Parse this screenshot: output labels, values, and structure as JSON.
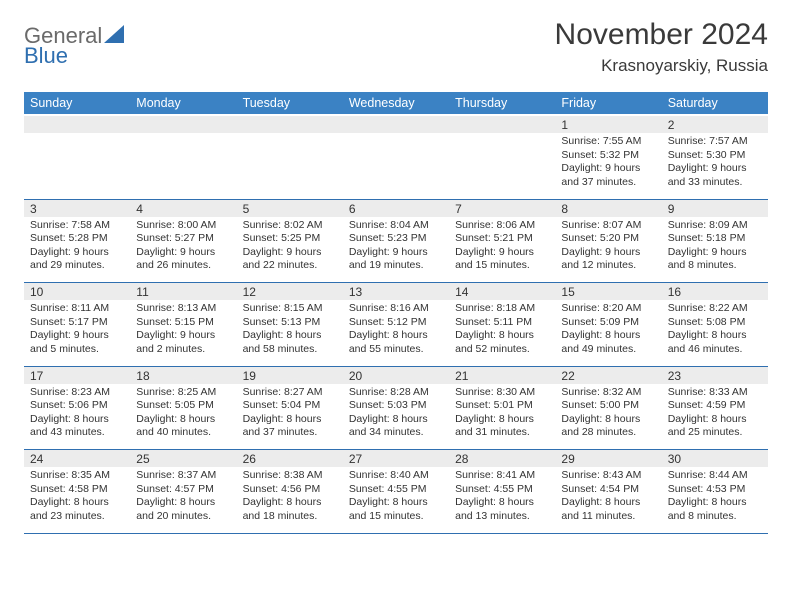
{
  "brand": {
    "name_part1": "General",
    "name_part2": "Blue",
    "accent_color": "#2f6fb0",
    "gray_color": "#6a6a6a"
  },
  "title": {
    "month_year": "November 2024",
    "location": "Krasnoyarskiy, Russia"
  },
  "theme": {
    "header_bg": "#3b82c4",
    "header_text": "#ffffff",
    "daynum_bg": "#ececec",
    "border_color": "#2f6fb0",
    "font_family": "Arial",
    "month_title_fontsize": 30,
    "location_fontsize": 17,
    "weekday_fontsize": 12.5,
    "daynum_fontsize": 12,
    "cell_fontsize": 10.5
  },
  "weekdays": [
    "Sunday",
    "Monday",
    "Tuesday",
    "Wednesday",
    "Thursday",
    "Friday",
    "Saturday"
  ],
  "weeks": [
    [
      {
        "day": "",
        "sunrise": "",
        "sunset": "",
        "daylight": ""
      },
      {
        "day": "",
        "sunrise": "",
        "sunset": "",
        "daylight": ""
      },
      {
        "day": "",
        "sunrise": "",
        "sunset": "",
        "daylight": ""
      },
      {
        "day": "",
        "sunrise": "",
        "sunset": "",
        "daylight": ""
      },
      {
        "day": "",
        "sunrise": "",
        "sunset": "",
        "daylight": ""
      },
      {
        "day": "1",
        "sunrise": "Sunrise: 7:55 AM",
        "sunset": "Sunset: 5:32 PM",
        "daylight": "Daylight: 9 hours and 37 minutes."
      },
      {
        "day": "2",
        "sunrise": "Sunrise: 7:57 AM",
        "sunset": "Sunset: 5:30 PM",
        "daylight": "Daylight: 9 hours and 33 minutes."
      }
    ],
    [
      {
        "day": "3",
        "sunrise": "Sunrise: 7:58 AM",
        "sunset": "Sunset: 5:28 PM",
        "daylight": "Daylight: 9 hours and 29 minutes."
      },
      {
        "day": "4",
        "sunrise": "Sunrise: 8:00 AM",
        "sunset": "Sunset: 5:27 PM",
        "daylight": "Daylight: 9 hours and 26 minutes."
      },
      {
        "day": "5",
        "sunrise": "Sunrise: 8:02 AM",
        "sunset": "Sunset: 5:25 PM",
        "daylight": "Daylight: 9 hours and 22 minutes."
      },
      {
        "day": "6",
        "sunrise": "Sunrise: 8:04 AM",
        "sunset": "Sunset: 5:23 PM",
        "daylight": "Daylight: 9 hours and 19 minutes."
      },
      {
        "day": "7",
        "sunrise": "Sunrise: 8:06 AM",
        "sunset": "Sunset: 5:21 PM",
        "daylight": "Daylight: 9 hours and 15 minutes."
      },
      {
        "day": "8",
        "sunrise": "Sunrise: 8:07 AM",
        "sunset": "Sunset: 5:20 PM",
        "daylight": "Daylight: 9 hours and 12 minutes."
      },
      {
        "day": "9",
        "sunrise": "Sunrise: 8:09 AM",
        "sunset": "Sunset: 5:18 PM",
        "daylight": "Daylight: 9 hours and 8 minutes."
      }
    ],
    [
      {
        "day": "10",
        "sunrise": "Sunrise: 8:11 AM",
        "sunset": "Sunset: 5:17 PM",
        "daylight": "Daylight: 9 hours and 5 minutes."
      },
      {
        "day": "11",
        "sunrise": "Sunrise: 8:13 AM",
        "sunset": "Sunset: 5:15 PM",
        "daylight": "Daylight: 9 hours and 2 minutes."
      },
      {
        "day": "12",
        "sunrise": "Sunrise: 8:15 AM",
        "sunset": "Sunset: 5:13 PM",
        "daylight": "Daylight: 8 hours and 58 minutes."
      },
      {
        "day": "13",
        "sunrise": "Sunrise: 8:16 AM",
        "sunset": "Sunset: 5:12 PM",
        "daylight": "Daylight: 8 hours and 55 minutes."
      },
      {
        "day": "14",
        "sunrise": "Sunrise: 8:18 AM",
        "sunset": "Sunset: 5:11 PM",
        "daylight": "Daylight: 8 hours and 52 minutes."
      },
      {
        "day": "15",
        "sunrise": "Sunrise: 8:20 AM",
        "sunset": "Sunset: 5:09 PM",
        "daylight": "Daylight: 8 hours and 49 minutes."
      },
      {
        "day": "16",
        "sunrise": "Sunrise: 8:22 AM",
        "sunset": "Sunset: 5:08 PM",
        "daylight": "Daylight: 8 hours and 46 minutes."
      }
    ],
    [
      {
        "day": "17",
        "sunrise": "Sunrise: 8:23 AM",
        "sunset": "Sunset: 5:06 PM",
        "daylight": "Daylight: 8 hours and 43 minutes."
      },
      {
        "day": "18",
        "sunrise": "Sunrise: 8:25 AM",
        "sunset": "Sunset: 5:05 PM",
        "daylight": "Daylight: 8 hours and 40 minutes."
      },
      {
        "day": "19",
        "sunrise": "Sunrise: 8:27 AM",
        "sunset": "Sunset: 5:04 PM",
        "daylight": "Daylight: 8 hours and 37 minutes."
      },
      {
        "day": "20",
        "sunrise": "Sunrise: 8:28 AM",
        "sunset": "Sunset: 5:03 PM",
        "daylight": "Daylight: 8 hours and 34 minutes."
      },
      {
        "day": "21",
        "sunrise": "Sunrise: 8:30 AM",
        "sunset": "Sunset: 5:01 PM",
        "daylight": "Daylight: 8 hours and 31 minutes."
      },
      {
        "day": "22",
        "sunrise": "Sunrise: 8:32 AM",
        "sunset": "Sunset: 5:00 PM",
        "daylight": "Daylight: 8 hours and 28 minutes."
      },
      {
        "day": "23",
        "sunrise": "Sunrise: 8:33 AM",
        "sunset": "Sunset: 4:59 PM",
        "daylight": "Daylight: 8 hours and 25 minutes."
      }
    ],
    [
      {
        "day": "24",
        "sunrise": "Sunrise: 8:35 AM",
        "sunset": "Sunset: 4:58 PM",
        "daylight": "Daylight: 8 hours and 23 minutes."
      },
      {
        "day": "25",
        "sunrise": "Sunrise: 8:37 AM",
        "sunset": "Sunset: 4:57 PM",
        "daylight": "Daylight: 8 hours and 20 minutes."
      },
      {
        "day": "26",
        "sunrise": "Sunrise: 8:38 AM",
        "sunset": "Sunset: 4:56 PM",
        "daylight": "Daylight: 8 hours and 18 minutes."
      },
      {
        "day": "27",
        "sunrise": "Sunrise: 8:40 AM",
        "sunset": "Sunset: 4:55 PM",
        "daylight": "Daylight: 8 hours and 15 minutes."
      },
      {
        "day": "28",
        "sunrise": "Sunrise: 8:41 AM",
        "sunset": "Sunset: 4:55 PM",
        "daylight": "Daylight: 8 hours and 13 minutes."
      },
      {
        "day": "29",
        "sunrise": "Sunrise: 8:43 AM",
        "sunset": "Sunset: 4:54 PM",
        "daylight": "Daylight: 8 hours and 11 minutes."
      },
      {
        "day": "30",
        "sunrise": "Sunrise: 8:44 AM",
        "sunset": "Sunset: 4:53 PM",
        "daylight": "Daylight: 8 hours and 8 minutes."
      }
    ]
  ]
}
